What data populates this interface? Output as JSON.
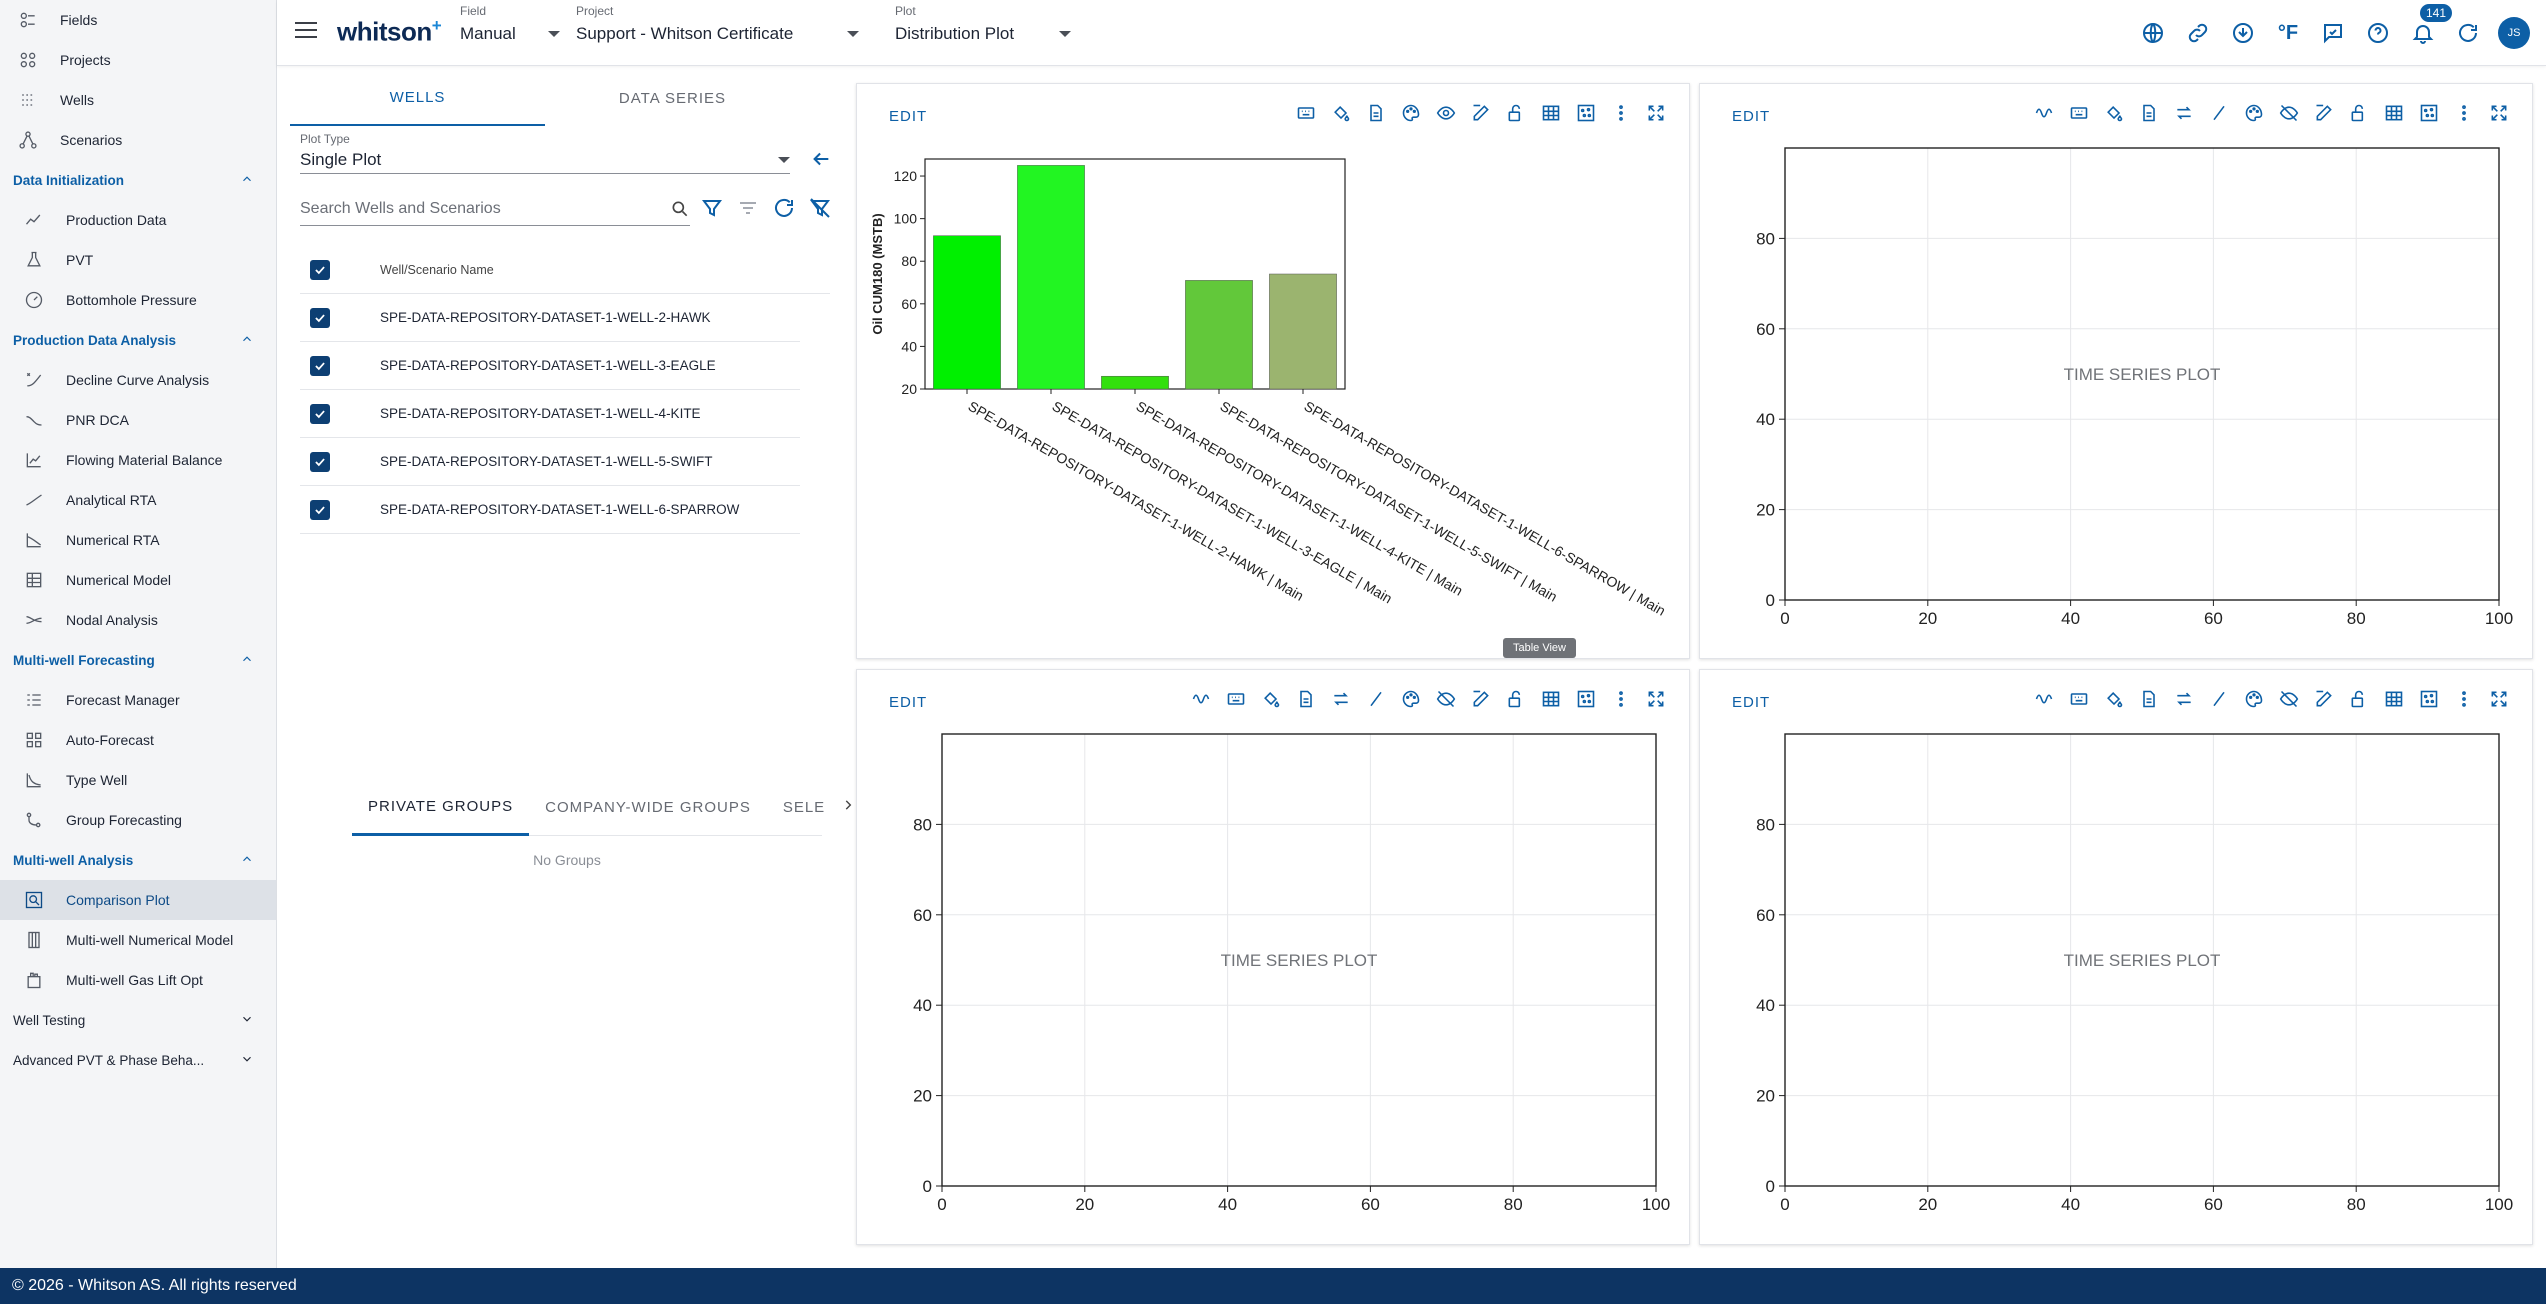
{
  "sidebar": {
    "top_items": [
      {
        "label": "Fields",
        "icon": "fields-icon"
      },
      {
        "label": "Projects",
        "icon": "projects-icon"
      },
      {
        "label": "Wells",
        "icon": "wells-icon"
      },
      {
        "label": "Scenarios",
        "icon": "scenarios-icon"
      }
    ],
    "sections": [
      {
        "label": "Data Initialization",
        "expanded": true,
        "items": [
          {
            "label": "Production Data",
            "icon": "production-data-icon"
          },
          {
            "label": "PVT",
            "icon": "pvt-flask-icon"
          },
          {
            "label": "Bottomhole Pressure",
            "icon": "gauge-icon"
          }
        ]
      },
      {
        "label": "Production Data Analysis",
        "expanded": true,
        "items": [
          {
            "label": "Decline Curve Analysis",
            "icon": "decline-curve-icon"
          },
          {
            "label": "PNR DCA",
            "icon": "pnr-dca-icon"
          },
          {
            "label": "Flowing Material Balance",
            "icon": "flowing-material-balance-icon"
          },
          {
            "label": "Analytical RTA",
            "icon": "analytical-rta-icon"
          },
          {
            "label": "Numerical RTA",
            "icon": "numerical-rta-icon"
          },
          {
            "label": "Numerical Model",
            "icon": "numerical-model-icon"
          },
          {
            "label": "Nodal Analysis",
            "icon": "nodal-analysis-icon"
          }
        ]
      },
      {
        "label": "Multi-well Forecasting",
        "expanded": true,
        "items": [
          {
            "label": "Forecast Manager",
            "icon": "forecast-manager-icon"
          },
          {
            "label": "Auto-Forecast",
            "icon": "auto-forecast-icon"
          },
          {
            "label": "Type Well",
            "icon": "type-well-icon"
          },
          {
            "label": "Group Forecasting",
            "icon": "group-forecasting-icon"
          }
        ]
      },
      {
        "label": "Multi-well Analysis",
        "expanded": true,
        "items": [
          {
            "label": "Comparison Plot",
            "icon": "comparison-plot-icon",
            "active": true
          },
          {
            "label": "Multi-well Numerical Model",
            "icon": "multi-well-numerical-icon"
          },
          {
            "label": "Multi-well Gas Lift Opt",
            "icon": "gas-lift-icon"
          }
        ]
      },
      {
        "label": "Well Testing",
        "expanded": false,
        "items": []
      },
      {
        "label": "Advanced PVT & Phase Beha...",
        "expanded": false,
        "items": []
      }
    ]
  },
  "topbar": {
    "logo": "whitson",
    "logo_sup": "+",
    "field": {
      "label": "Field",
      "value": "Manual"
    },
    "project": {
      "label": "Project",
      "value": "Support - Whitson Certificate"
    },
    "plot": {
      "label": "Plot",
      "value": "Distribution Plot"
    },
    "units_label": "°F",
    "notifications_count": "141",
    "avatar_initials": "JS"
  },
  "left_panel": {
    "tabs": [
      "WELLS",
      "DATA SERIES"
    ],
    "plot_type": {
      "label": "Plot Type",
      "value": "Single Plot"
    },
    "search_placeholder": "Search Wells and Scenarios",
    "table_header": "Well/Scenario Name",
    "wells": [
      "SPE-DATA-REPOSITORY-DATASET-1-WELL-2-HAWK",
      "SPE-DATA-REPOSITORY-DATASET-1-WELL-3-EAGLE",
      "SPE-DATA-REPOSITORY-DATASET-1-WELL-4-KITE",
      "SPE-DATA-REPOSITORY-DATASET-1-WELL-5-SWIFT",
      "SPE-DATA-REPOSITORY-DATASET-1-WELL-6-SPARROW"
    ],
    "group_tabs": [
      "PRIVATE GROUPS",
      "COMPANY-WIDE GROUPS",
      "SELE"
    ],
    "no_groups": "No Groups"
  },
  "panels": {
    "edit_label": "EDIT",
    "placeholder_text": "TIME SERIES PLOT",
    "tooltip": "Table View"
  },
  "chart_data": [
    {
      "type": "bar",
      "ylabel": "Oil CUM180 (MSTB)",
      "ylim": [
        20,
        128
      ],
      "yticks": [
        20,
        40,
        60,
        80,
        100,
        120
      ],
      "categories": [
        "SPE-DATA-REPOSITORY-DATASET-1-WELL-2-HAWK | Main",
        "SPE-DATA-REPOSITORY-DATASET-1-WELL-3-EAGLE | Main",
        "SPE-DATA-REPOSITORY-DATASET-1-WELL-4-KITE | Main",
        "SPE-DATA-REPOSITORY-DATASET-1-WELL-5-SWIFT | Main",
        "SPE-DATA-REPOSITORY-DATASET-1-WELL-6-SPARROW | Main"
      ],
      "values": [
        92,
        125,
        26,
        71,
        74
      ],
      "colors": [
        "#00f000",
        "#22f522",
        "#33e00d",
        "#62c83a",
        "#9bb46f"
      ]
    },
    {
      "type": "line",
      "placeholder": "TIME SERIES PLOT",
      "xlim": [
        0,
        100
      ],
      "ylim": [
        0,
        100
      ],
      "xticks": [
        0,
        20,
        40,
        60,
        80,
        100
      ],
      "yticks": [
        0,
        20,
        40,
        60,
        80
      ],
      "grid": true
    },
    {
      "type": "line",
      "placeholder": "TIME SERIES PLOT",
      "xlim": [
        0,
        100
      ],
      "ylim": [
        0,
        100
      ],
      "xticks": [
        0,
        20,
        40,
        60,
        80,
        100
      ],
      "yticks": [
        0,
        20,
        40,
        60,
        80
      ],
      "grid": true
    },
    {
      "type": "line",
      "placeholder": "TIME SERIES PLOT",
      "xlim": [
        0,
        100
      ],
      "ylim": [
        0,
        100
      ],
      "xticks": [
        0,
        20,
        40,
        60,
        80,
        100
      ],
      "yticks": [
        0,
        20,
        40,
        60,
        80
      ],
      "grid": true
    }
  ],
  "footer": "© 2026 - Whitson AS. All rights reserved"
}
